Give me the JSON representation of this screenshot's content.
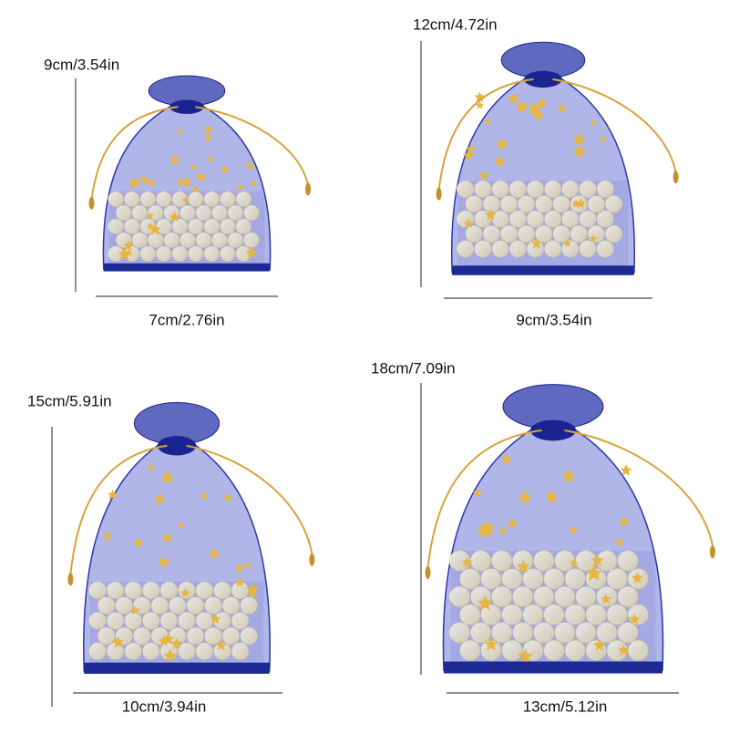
{
  "panels": [
    {
      "height_label": "9cm/3.54in",
      "width_label": "7cm/2.76in"
    },
    {
      "height_label": "12cm/4.72in",
      "width_label": "9cm/3.54in"
    },
    {
      "height_label": "15cm/5.91in",
      "width_label": "10cm/3.94in"
    },
    {
      "height_label": "18cm/7.09in",
      "width_label": "13cm/5.12in"
    }
  ]
}
